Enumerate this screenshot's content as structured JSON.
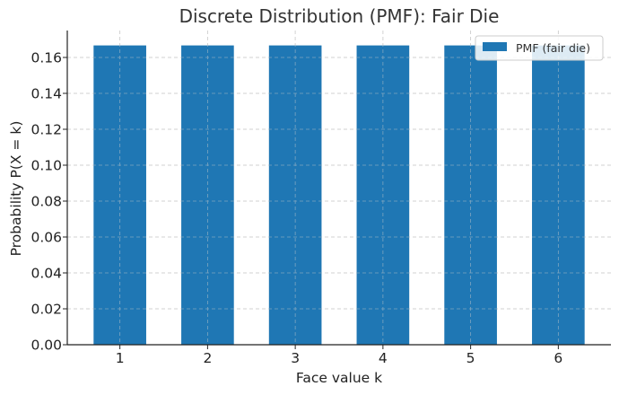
{
  "chart_data": {
    "type": "bar",
    "title": "Discrete Distribution (PMF): Fair Die",
    "xlabel": "Face value k",
    "ylabel": "Probability P(X = k)",
    "categories": [
      "1",
      "2",
      "3",
      "4",
      "5",
      "6"
    ],
    "series": [
      {
        "name": "PMF (fair die)",
        "values": [
          0.1667,
          0.1667,
          0.1667,
          0.1667,
          0.1667,
          0.1667
        ]
      }
    ],
    "ylim": [
      0,
      0.175
    ],
    "yticks": [
      "0.00",
      "0.02",
      "0.04",
      "0.06",
      "0.08",
      "0.10",
      "0.12",
      "0.14",
      "0.16"
    ],
    "grid": true,
    "legend_position": "top-right",
    "colors": {
      "bar": "#1f77b4"
    }
  }
}
